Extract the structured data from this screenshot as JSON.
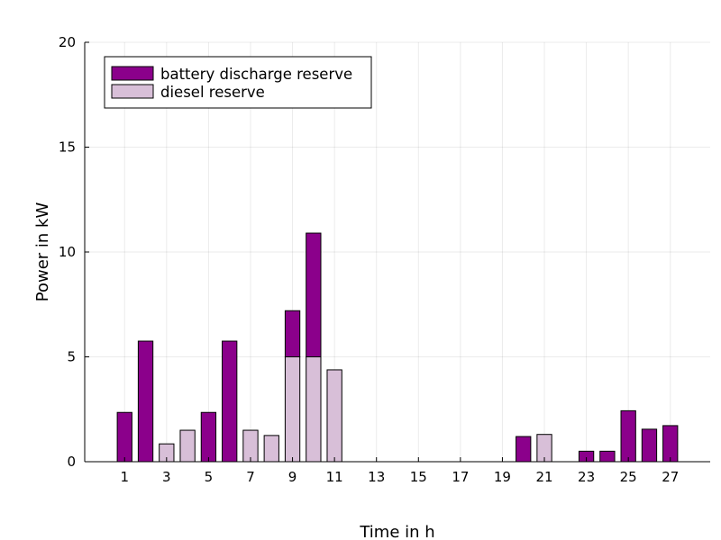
{
  "chart_data": {
    "type": "bar",
    "stacked": true,
    "title": "",
    "xlabel": "Time in h",
    "ylabel": "Power in kW",
    "x": [
      1,
      2,
      3,
      4,
      5,
      6,
      7,
      8,
      9,
      10,
      11,
      12,
      13,
      14,
      15,
      16,
      17,
      18,
      19,
      20,
      21,
      22,
      23,
      24,
      25,
      26,
      27
    ],
    "xlim": [
      -0.9,
      28.9
    ],
    "ylim": [
      0,
      20
    ],
    "xticks": [
      "1",
      "3",
      "5",
      "7",
      "9",
      "11",
      "13",
      "15",
      "17",
      "19",
      "21",
      "23",
      "25",
      "27"
    ],
    "yticks": [
      "0",
      "5",
      "10",
      "15",
      "20"
    ],
    "grid": true,
    "legend_position": "top-left",
    "series": [
      {
        "name": "diesel reserve",
        "color": "#d8bfd8",
        "values": [
          0,
          0,
          0.85,
          1.5,
          0,
          0,
          1.5,
          1.25,
          5.0,
          5.0,
          4.38,
          0,
          0,
          0,
          0,
          0,
          0,
          0,
          0,
          0,
          1.3,
          0,
          0,
          0,
          0,
          0,
          0
        ]
      },
      {
        "name": "battery discharge reserve",
        "color": "#8b008b",
        "values": [
          2.35,
          5.75,
          0,
          0,
          2.35,
          5.75,
          0,
          0,
          2.2,
          5.9,
          0,
          0,
          0,
          0,
          0,
          0,
          0,
          0,
          0,
          1.2,
          0,
          0,
          0.5,
          0.5,
          2.43,
          1.55,
          1.72
        ]
      }
    ],
    "legend_order": [
      "battery discharge reserve",
      "diesel reserve"
    ]
  }
}
